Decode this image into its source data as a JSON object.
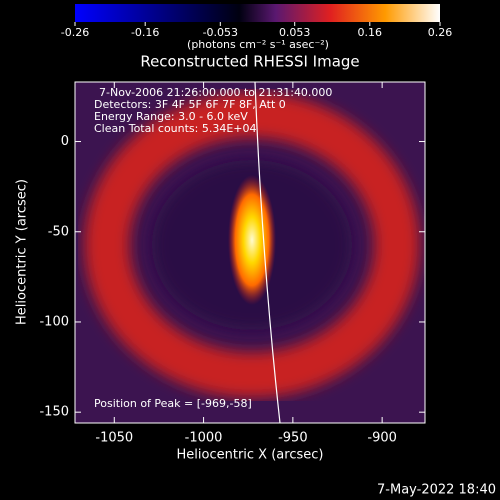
{
  "chart_data": {
    "type": "image",
    "title": "Reconstructed RHESSI Image",
    "annotations": [
      "7-Nov-2006 21:26:00.000 to 21:31:40.000",
      "Detectors: 3F 4F 5F 6F 7F 8F, Att 0",
      "Energy Range: 3.0 - 6.0 keV",
      "Clean     Total counts: 5.34E+04"
    ],
    "peak_label": "Position of Peak = [-969,-58]",
    "x_label": "Heliocentric X (arcsec)",
    "y_label": "Heliocentric Y (arcsec)",
    "xlim": [
      -1072,
      -876
    ],
    "xticks": [
      -1050,
      -1000,
      -950,
      -900
    ],
    "ylim": [
      -156,
      33
    ],
    "yticks": [
      -150,
      -100,
      -50,
      0
    ],
    "colorbar": {
      "lim": [
        -0.26,
        0.26
      ],
      "ticks": [
        -0.26,
        -0.16,
        -0.053,
        0.053,
        0.16,
        0.26
      ],
      "label": "(photons cm⁻² s⁻¹ asec⁻²)"
    },
    "footer": "7-May-2022 18:40"
  }
}
